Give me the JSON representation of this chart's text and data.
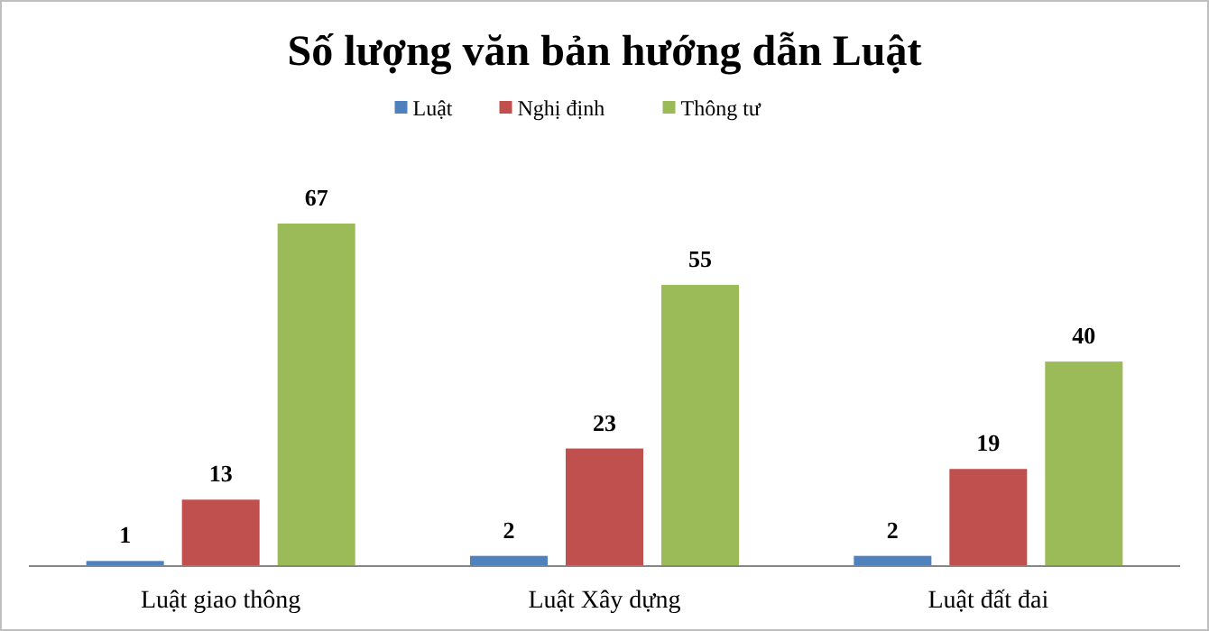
{
  "chart_data": {
    "type": "bar",
    "title": "Số lượng văn bản hướng dẫn Luật",
    "categories": [
      "Luật giao thông",
      "Luật Xây dựng",
      "Luật đất đai"
    ],
    "series": [
      {
        "name": "Luật",
        "color": "#4f81bd",
        "values": [
          1,
          2,
          2
        ]
      },
      {
        "name": "Nghị định",
        "color": "#c0504d",
        "values": [
          13,
          23,
          19
        ]
      },
      {
        "name": "Thông tư",
        "color": "#9bbb59",
        "values": [
          67,
          55,
          40
        ]
      }
    ],
    "data_labels": true,
    "legend": "top"
  }
}
